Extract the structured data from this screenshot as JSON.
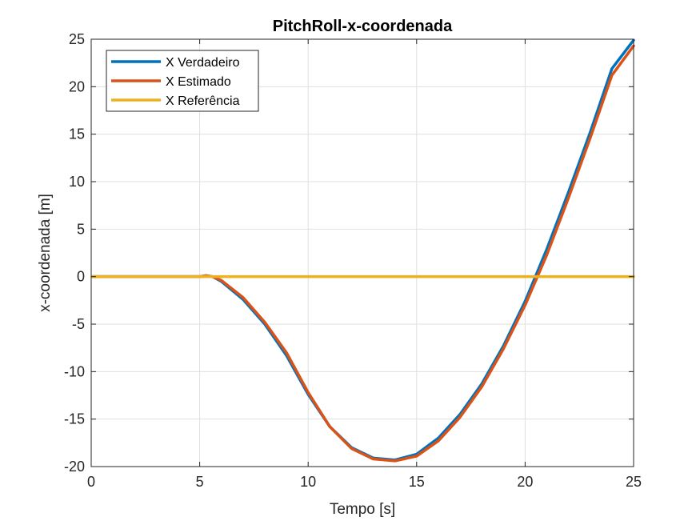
{
  "chart_data": {
    "type": "line",
    "title": "PitchRoll-x-coordenada",
    "xlabel": "Tempo [s]",
    "ylabel": "x-coordenada [m]",
    "xlim": [
      0,
      25
    ],
    "ylim": [
      -20,
      25
    ],
    "xticks": [
      0,
      5,
      10,
      15,
      20,
      25
    ],
    "yticks": [
      -20,
      -15,
      -10,
      -5,
      0,
      5,
      10,
      15,
      20,
      25
    ],
    "grid": true,
    "legend_position": "top-left",
    "series": [
      {
        "name": "X Verdadeiro",
        "color": "#0072BD",
        "x": [
          0,
          5,
          5.3,
          5.6,
          6,
          7,
          8,
          9,
          10,
          11,
          12,
          13,
          14,
          15,
          16,
          17,
          18,
          19,
          20,
          21,
          22,
          23,
          24,
          25
        ],
        "y": [
          0,
          0,
          0.1,
          0,
          -0.5,
          -2.4,
          -5.0,
          -8.3,
          -12.4,
          -15.8,
          -18.0,
          -19.1,
          -19.3,
          -18.7,
          -17.0,
          -14.5,
          -11.3,
          -7.3,
          -2.6,
          2.9,
          8.9,
          15.2,
          21.9,
          24.9
        ]
      },
      {
        "name": "X Estimado",
        "color": "#D95319",
        "x": [
          0,
          5,
          5.3,
          5.6,
          6,
          7,
          8,
          9,
          10,
          11,
          12,
          13,
          14,
          15,
          16,
          17,
          18,
          19,
          20,
          21,
          22,
          23,
          24,
          25
        ],
        "y": [
          0,
          0,
          0.1,
          0,
          -0.4,
          -2.2,
          -4.8,
          -8.0,
          -12.2,
          -15.8,
          -18.1,
          -19.2,
          -19.4,
          -18.9,
          -17.3,
          -14.8,
          -11.6,
          -7.6,
          -3.0,
          2.3,
          8.3,
          14.6,
          21.2,
          24.3
        ]
      },
      {
        "name": "X Referência",
        "color": "#EDB120",
        "x": [
          0,
          25
        ],
        "y": [
          0,
          0
        ]
      }
    ]
  }
}
